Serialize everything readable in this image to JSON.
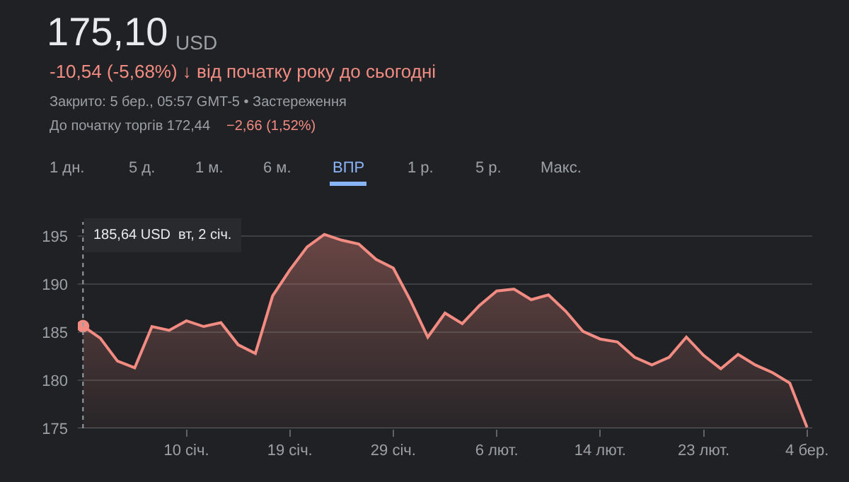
{
  "chart_data": {
    "type": "area",
    "title": "175,10",
    "subtitle": "USD",
    "annotations": [
      "-10,54 (-5,68%) ↓ від початку року до сьогодні",
      "Закрито: 5 бер., 05:57 GMT-5 • Застереження",
      "До початку торгів 172,44",
      "−2,66 (1,52%)",
      "1 дн.",
      "5 д.",
      "1 м.",
      "6 м.",
      "ВПР",
      "1 р.",
      "5 р.",
      "Макс.",
      "185,64 USD  вт, 2 січ."
    ],
    "categories": [
      null,
      null,
      null,
      null,
      null,
      null,
      "10 січ.",
      null,
      null,
      null,
      null,
      null,
      "19 січ.",
      null,
      null,
      null,
      null,
      null,
      "29 січ.",
      null,
      null,
      null,
      null,
      null,
      "6 лют.",
      null,
      null,
      null,
      null,
      null,
      "14 лют.",
      null,
      null,
      null,
      null,
      null,
      "23 лют.",
      null,
      null,
      null,
      null,
      null,
      "4 бер."
    ],
    "series": [
      {
        "color": "#f28b82",
        "values": [
          185.64,
          184.4,
          182.0,
          181.3,
          185.6,
          185.2,
          186.2,
          185.6,
          186.0,
          183.7,
          182.8,
          188.8,
          191.5,
          193.9,
          195.2,
          194.6,
          194.2,
          192.6,
          191.7,
          188.3,
          184.5,
          187.0,
          185.9,
          187.8,
          189.3,
          189.5,
          188.4,
          188.9,
          187.2,
          185.1,
          184.3,
          184.0,
          182.4,
          181.6,
          182.4,
          184.5,
          182.6,
          181.2,
          182.7,
          181.6,
          180.8,
          179.7,
          175.1
        ]
      }
    ],
    "ylim": [
      175,
      196.5
    ],
    "yticks": [
      175,
      180,
      185,
      190,
      195
    ],
    "grid": "y",
    "line_style": "solid"
  }
}
